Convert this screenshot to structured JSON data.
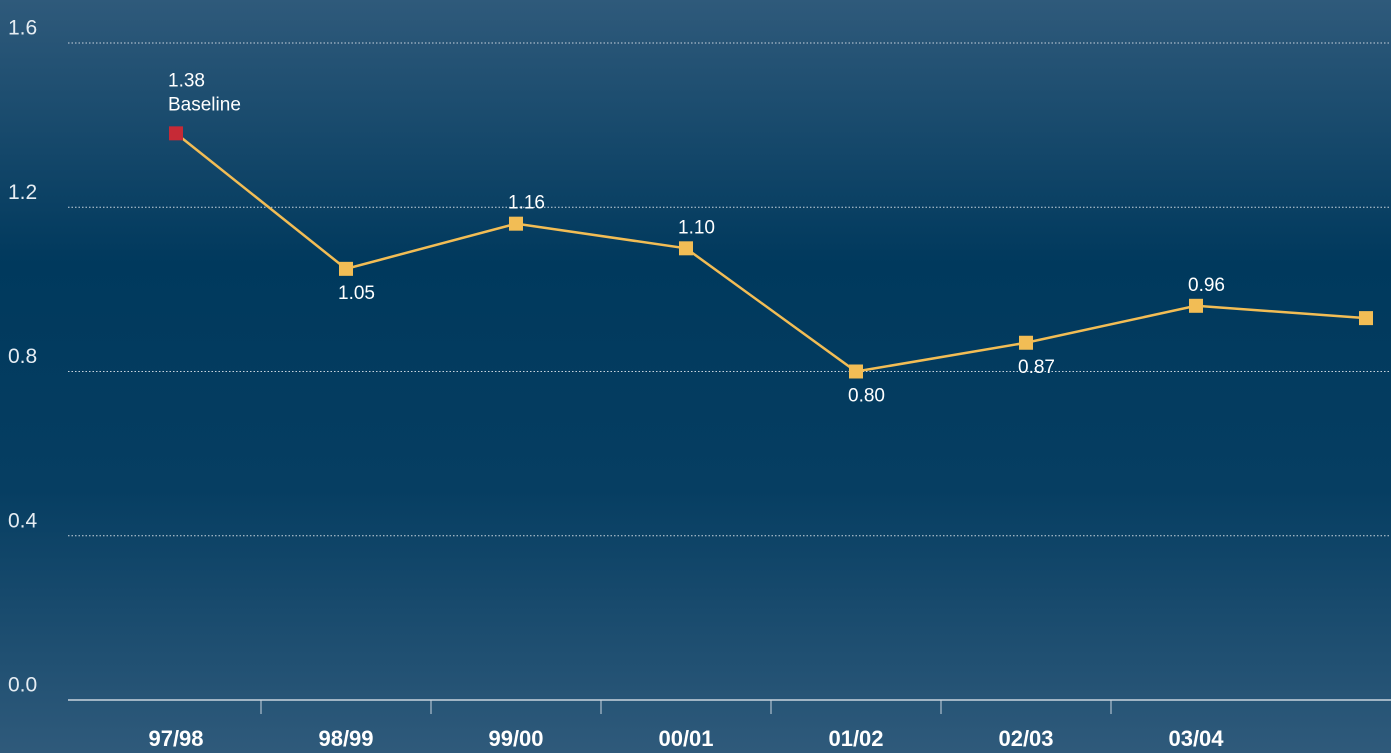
{
  "chart_data": {
    "type": "line",
    "categories": [
      "97/98",
      "98/99",
      "99/00",
      "00/01",
      "01/02",
      "02/03",
      "03/04",
      null
    ],
    "series": [
      {
        "color": "#f2bd55",
        "marker_colors": [
          "#c62a36",
          "#f2bd55",
          "#f2bd55",
          "#f2bd55",
          "#f2bd55",
          "#f2bd55",
          "#f2bd55",
          "#f2bd55"
        ],
        "values": [
          1.38,
          1.05,
          1.16,
          1.1,
          0.8,
          0.87,
          0.96,
          0.93
        ],
        "value_labels": [
          "1.38",
          "1.05",
          "1.16",
          "1.10",
          "0.80",
          "0.87",
          "0.96",
          null
        ]
      }
    ],
    "annotations": [
      {
        "text": "Baseline",
        "index": 0
      }
    ],
    "ylim": [
      0,
      1.6
    ],
    "yticks": [
      {
        "value": 0,
        "label": "0.0"
      },
      0.4,
      0.8,
      1.2,
      1.6
    ],
    "grid": true
  }
}
